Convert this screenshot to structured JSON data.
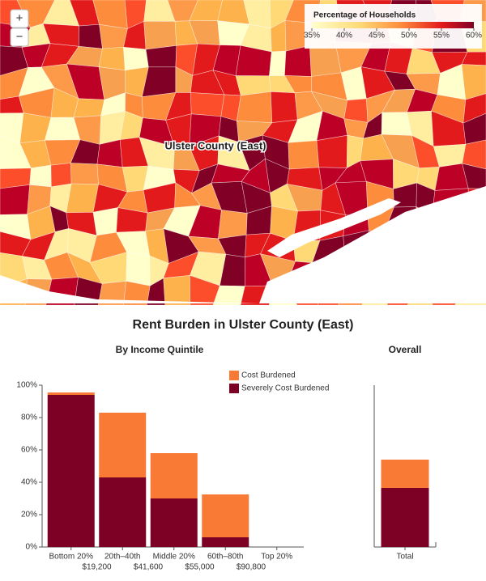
{
  "map": {
    "label": "Ulster County (East)",
    "zoom_in": "+",
    "zoom_out": "−",
    "legend": {
      "title": "Percentage of Households",
      "ticks": [
        {
          "value": 35,
          "label": "35%"
        },
        {
          "value": 40,
          "label": "40%"
        },
        {
          "value": 45,
          "label": "45%"
        },
        {
          "value": 50,
          "label": "50%"
        },
        {
          "value": 55,
          "label": "55%"
        },
        {
          "value": 60,
          "label": "60%"
        }
      ]
    }
  },
  "title": "Rent Burden in Ulster County (East)",
  "chart_data": [
    {
      "type": "stacked-bar",
      "title": "By Income Quintile",
      "categories": [
        "Bottom 20%",
        "20th–40th",
        "Middle 20%",
        "60th–80th",
        "Top 20%"
      ],
      "thresholds": [
        "$19,200",
        "$41,600",
        "$55,000",
        "$90,800"
      ],
      "series": [
        {
          "name": "Severely Cost Burdened",
          "color": "#7d0025",
          "values": [
            94,
            43,
            30,
            6,
            0
          ]
        },
        {
          "name": "Cost Burdened",
          "color": "#f87a35",
          "values": [
            1.5,
            40,
            28,
            26.5,
            0
          ]
        }
      ],
      "ylim": [
        0,
        100
      ],
      "yticks": [
        {
          "value": 0,
          "label": "0%"
        },
        {
          "value": 20,
          "label": "20%"
        },
        {
          "value": 40,
          "label": "40%"
        },
        {
          "value": 60,
          "label": "60%"
        },
        {
          "value": 80,
          "label": "80%"
        },
        {
          "value": 100,
          "label": "100%"
        }
      ]
    },
    {
      "type": "stacked-bar",
      "title": "Overall",
      "categories": [
        "Total"
      ],
      "series": [
        {
          "name": "Severely Cost Burdened",
          "color": "#7d0025",
          "values": [
            36.5
          ]
        },
        {
          "name": "Cost Burdened",
          "color": "#f87a35",
          "values": [
            17.5
          ]
        }
      ],
      "ylim": [
        0,
        100
      ]
    }
  ]
}
